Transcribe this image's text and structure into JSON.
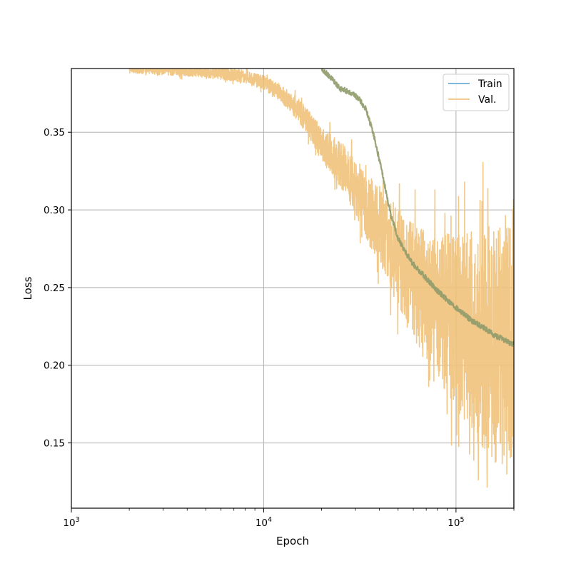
{
  "chart_data": {
    "type": "line",
    "xlabel": "Epoch",
    "ylabel": "Loss",
    "xscale": "log",
    "xlim": [
      1000,
      200000
    ],
    "ylim": [
      0.108,
      0.391
    ],
    "grid": true,
    "legend_position": "top-right",
    "x_major_ticks": [
      {
        "value": 1000,
        "base": "10",
        "exp": "3"
      },
      {
        "value": 10000,
        "base": "10",
        "exp": "4"
      },
      {
        "value": 100000,
        "base": "10",
        "exp": "5"
      }
    ],
    "y_ticks": [
      {
        "value": 0.15,
        "label": "0.15"
      },
      {
        "value": 0.2,
        "label": "0.20"
      },
      {
        "value": 0.25,
        "label": "0.25"
      },
      {
        "value": 0.3,
        "label": "0.30"
      },
      {
        "value": 0.35,
        "label": "0.35"
      }
    ],
    "series": [
      {
        "name": "Train",
        "color": "#6baed6",
        "points": [
          [
            20000,
            0.391
          ],
          [
            22000,
            0.386
          ],
          [
            25000,
            0.378
          ],
          [
            28000,
            0.376
          ],
          [
            31000,
            0.372
          ],
          [
            34000,
            0.365
          ],
          [
            37000,
            0.35
          ],
          [
            40000,
            0.332
          ],
          [
            43000,
            0.313
          ],
          [
            46000,
            0.296
          ],
          [
            50000,
            0.282
          ],
          [
            55000,
            0.272
          ],
          [
            60000,
            0.265
          ],
          [
            70000,
            0.256
          ],
          [
            80000,
            0.248
          ],
          [
            90000,
            0.242
          ],
          [
            100000,
            0.237
          ],
          [
            110000,
            0.233
          ],
          [
            120000,
            0.229
          ],
          [
            140000,
            0.224
          ],
          [
            160000,
            0.219
          ],
          [
            180000,
            0.216
          ],
          [
            200000,
            0.213
          ]
        ]
      },
      {
        "name": "Val.",
        "color": "#f0c27a",
        "points": [
          [
            2000,
            0.392
          ],
          [
            4000,
            0.39
          ],
          [
            5000,
            0.389
          ],
          [
            8000,
            0.386
          ],
          [
            10000,
            0.382
          ],
          [
            12000,
            0.376
          ],
          [
            15000,
            0.365
          ],
          [
            18000,
            0.352
          ],
          [
            20000,
            0.342
          ],
          [
            25000,
            0.33
          ],
          [
            30000,
            0.315
          ],
          [
            35000,
            0.3
          ],
          [
            40000,
            0.29
          ],
          [
            50000,
            0.27
          ],
          [
            60000,
            0.255
          ],
          [
            70000,
            0.245
          ],
          [
            80000,
            0.24
          ],
          [
            100000,
            0.228
          ],
          [
            120000,
            0.222
          ],
          [
            150000,
            0.215
          ],
          [
            200000,
            0.212
          ]
        ]
      }
    ]
  }
}
